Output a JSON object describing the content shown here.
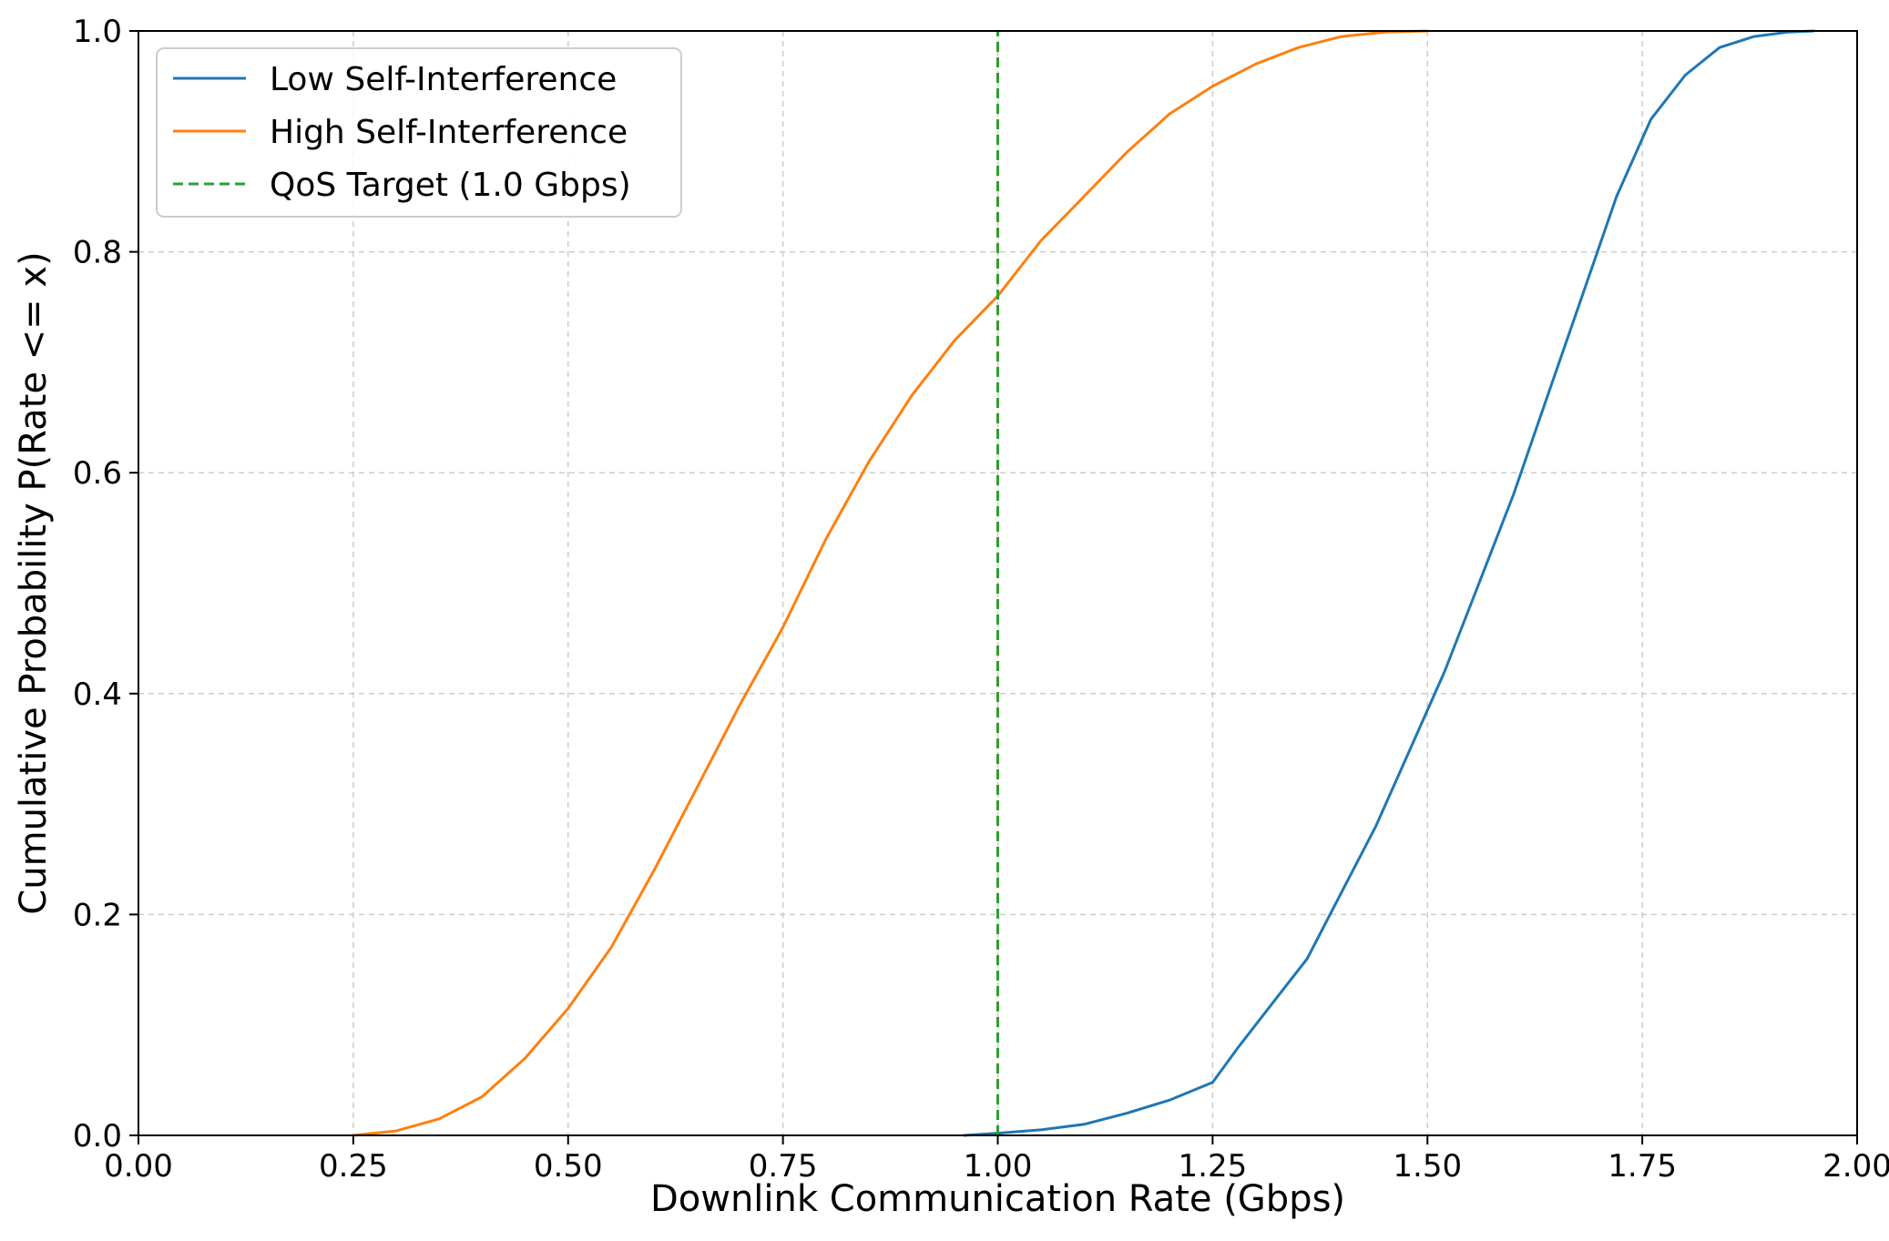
{
  "chart_data": {
    "type": "line",
    "title": "",
    "xlabel": "Downlink Communication Rate (Gbps)",
    "ylabel": "Cumulative Probability P(Rate <= x)",
    "xlim": [
      0.0,
      2.0
    ],
    "ylim": [
      0.0,
      1.0
    ],
    "grid": true,
    "legend_position": "upper-left",
    "x_ticks": [
      "0.00",
      "0.25",
      "0.50",
      "0.75",
      "1.00",
      "1.25",
      "1.50",
      "1.75",
      "2.00"
    ],
    "y_ticks": [
      "0.0",
      "0.2",
      "0.4",
      "0.6",
      "0.8",
      "1.0"
    ],
    "series": [
      {
        "name": "Low Self-Interference",
        "color": "#1f77b4",
        "style": "solid",
        "x": [
          0.96,
          1.0,
          1.05,
          1.1,
          1.15,
          1.2,
          1.25,
          1.28,
          1.32,
          1.36,
          1.4,
          1.44,
          1.48,
          1.52,
          1.56,
          1.6,
          1.64,
          1.68,
          1.72,
          1.76,
          1.8,
          1.84,
          1.88,
          1.92,
          1.95
        ],
        "y": [
          0.0,
          0.002,
          0.005,
          0.01,
          0.02,
          0.032,
          0.048,
          0.08,
          0.12,
          0.16,
          0.22,
          0.28,
          0.35,
          0.42,
          0.5,
          0.58,
          0.67,
          0.76,
          0.85,
          0.92,
          0.96,
          0.985,
          0.995,
          0.999,
          1.0
        ]
      },
      {
        "name": "High Self-Interference",
        "color": "#ff7f0e",
        "style": "solid",
        "x": [
          0.25,
          0.3,
          0.35,
          0.4,
          0.45,
          0.5,
          0.55,
          0.6,
          0.65,
          0.7,
          0.75,
          0.8,
          0.85,
          0.9,
          0.95,
          1.0,
          1.05,
          1.1,
          1.15,
          1.2,
          1.25,
          1.3,
          1.35,
          1.4,
          1.45,
          1.5
        ],
        "y": [
          0.0,
          0.004,
          0.015,
          0.035,
          0.07,
          0.115,
          0.17,
          0.24,
          0.315,
          0.39,
          0.46,
          0.54,
          0.61,
          0.67,
          0.72,
          0.76,
          0.81,
          0.85,
          0.89,
          0.925,
          0.95,
          0.97,
          0.985,
          0.995,
          0.999,
          1.0
        ]
      },
      {
        "name": "QoS Target (1.0 Gbps)",
        "color": "#2ca02c",
        "style": "dashed",
        "x": [
          1.0,
          1.0
        ],
        "y": [
          0.0,
          1.0
        ]
      }
    ]
  }
}
